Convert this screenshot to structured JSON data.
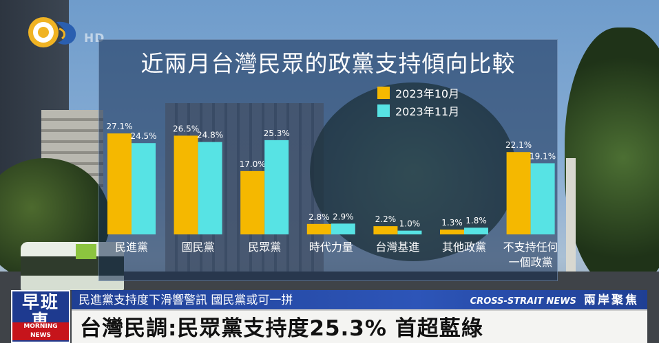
{
  "broadcast": {
    "hd_badge": "HD",
    "program_logo": {
      "name_line1": "早班",
      "name_line2": "車",
      "subtitle": "MORNING NEWS"
    },
    "ticker_left": "民進黨支持度下滑響警訊 國民黨或可一拼",
    "ticker_right_en": "CROSS-STRAIT NEWS",
    "ticker_right_zh": "兩岸聚焦",
    "headline": "台灣民調:民眾黨支持度25.3% 首超藍綠"
  },
  "colors": {
    "series_oct": "#f5b800",
    "series_nov": "#57e3e4",
    "panel_bg": "rgba(22,46,82,0.55)",
    "ticker_blue": "#2d55b8"
  },
  "chart_data": {
    "type": "bar",
    "title": "近兩月台灣民眾的政黨支持傾向比較",
    "categories": [
      "民進黨",
      "國民黨",
      "民眾黨",
      "時代力量",
      "台灣基進",
      "其他政黨",
      "不支持任何一個政黨"
    ],
    "category_label_lines": [
      [
        "民進黨"
      ],
      [
        "國民黨"
      ],
      [
        "民眾黨"
      ],
      [
        "時代力量"
      ],
      [
        "台灣基進"
      ],
      [
        "其他政黨"
      ],
      [
        "不支持任何",
        "一個政黨"
      ]
    ],
    "series": [
      {
        "name": "2023年10月",
        "values": [
          27.1,
          26.5,
          17.0,
          2.8,
          2.2,
          1.3,
          22.1
        ],
        "labels": [
          "27.1%",
          "26.5%",
          "17.0%",
          "2.8%",
          "2.2%",
          "1.3%",
          "22.1%"
        ]
      },
      {
        "name": "2023年11月",
        "values": [
          24.5,
          24.8,
          25.3,
          2.9,
          1.0,
          1.8,
          19.1
        ],
        "labels": [
          "24.5%",
          "24.8%",
          "25.3%",
          "2.9%",
          "1.0%",
          "1.8%",
          "19.1%"
        ]
      }
    ],
    "ylim": [
      0,
      30
    ],
    "grid": false,
    "legend_position": "top-right",
    "xlabel": "",
    "ylabel": ""
  }
}
